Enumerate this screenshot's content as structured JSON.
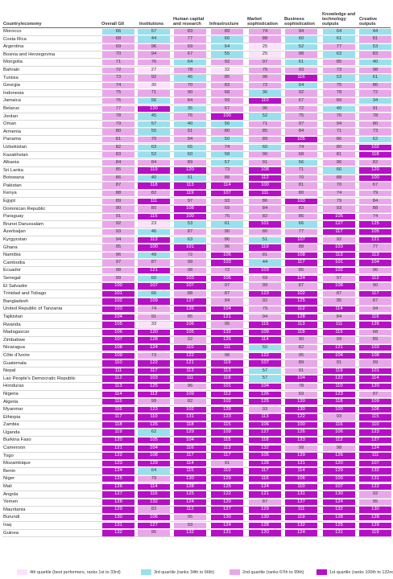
{
  "headers": {
    "country": "Country/economy",
    "cols": [
      "Overall GII",
      "Institutions",
      "Human capital and research",
      "Infrastructure",
      "Market sophistication",
      "Business sophistication",
      "Knowledge and technology outputs",
      "Creative outputs"
    ]
  },
  "colors": {
    "q1": "#fbe2fb",
    "q2": "#98e0ee",
    "q3": "#eaa6ea",
    "q4": "#b70fc8"
  },
  "rows": [
    {
      "c": "Morocco",
      "v": [
        66,
        57,
        83,
        89,
        74,
        94,
        64,
        44
      ]
    },
    {
      "c": "Costa Rica",
      "v": [
        68,
        44,
        77,
        66,
        88,
        60,
        61,
        81
      ]
    },
    {
      "c": "Argentina",
      "v": [
        69,
        96,
        69,
        64,
        25,
        52,
        77,
        53
      ]
    },
    {
      "c": "Bosnia and Herzegovina",
      "v": [
        70,
        94,
        67,
        55,
        25,
        98,
        63,
        83
      ]
    },
    {
      "c": "Mongolia",
      "v": [
        71,
        76,
        64,
        92,
        97,
        61,
        85,
        40
      ]
    },
    {
      "c": "Bahrain",
      "v": [
        72,
        27,
        78,
        32,
        75,
        93,
        73,
        98
      ]
    },
    {
      "c": "Tunisia",
      "v": [
        73,
        92,
        45,
        85,
        98,
        116,
        53,
        61
      ]
    },
    {
      "c": "Georgia",
      "v": [
        74,
        30,
        70,
        83,
        72,
        64,
        75,
        86
      ]
    },
    {
      "c": "Indonesia",
      "v": [
        75,
        71,
        90,
        68,
        36,
        92,
        78,
        72
      ]
    },
    {
      "c": "Jamaica",
      "v": [
        76,
        56,
        84,
        99,
        110,
        67,
        89,
        34
      ]
    },
    {
      "c": "Belarus",
      "v": [
        77,
        130,
        35,
        67,
        96,
        72,
        40,
        91
      ]
    },
    {
      "c": "Jordan",
      "v": [
        78,
        45,
        76,
        100,
        52,
        75,
        76,
        78
      ]
    },
    {
      "c": "Oman",
      "v": [
        79,
        57,
        40,
        56,
        71,
        97,
        94,
        80
      ]
    },
    {
      "c": "Armenia",
      "v": [
        80,
        55,
        91,
        80,
        85,
        84,
        71,
        73
      ]
    },
    {
      "c": "Panama",
      "v": [
        81,
        70,
        94,
        50,
        89,
        105,
        86,
        62
      ]
    },
    {
      "c": "Uzbekistan",
      "v": [
        82,
        63,
        65,
        74,
        60,
        74,
        80,
        102
      ]
    },
    {
      "c": "Kazakhstan",
      "v": [
        83,
        52,
        60,
        58,
        90,
        68,
        81,
        118
      ]
    },
    {
      "c": "Albania",
      "v": [
        84,
        84,
        89,
        57,
        91,
        56,
        96,
        82
      ]
    },
    {
      "c": "Sri Lanka",
      "v": [
        85,
        119,
        120,
        73,
        108,
        71,
        66,
        120
      ]
    },
    {
      "c": "Botswana",
      "v": [
        86,
        40,
        51,
        88,
        112,
        70,
        88,
        100
      ]
    },
    {
      "c": "Pakistan",
      "v": [
        87,
        118,
        113,
        114,
        100,
        81,
        70,
        67
      ]
    },
    {
      "c": "Kenya",
      "v": [
        88,
        82,
        119,
        107,
        111,
        80,
        74,
        79
      ]
    },
    {
      "c": "Egypt",
      "v": [
        89,
        111,
        97,
        93,
        86,
        103,
        79,
        84
      ]
    },
    {
      "c": "Dominican Republic",
      "v": [
        90,
        80,
        108,
        69,
        84,
        83,
        93,
        88
      ]
    },
    {
      "c": "Paraguay",
      "v": [
        91,
        115,
        100,
        76,
        82,
        86,
        105,
        74
      ]
    },
    {
      "c": "Brunei Darussalam",
      "v": [
        92,
        23,
        53,
        61,
        101,
        66,
        127,
        125
      ]
    },
    {
      "c": "Azerbaijan",
      "v": [
        93,
        46,
        87,
        90,
        80,
        77,
        117,
        105
      ]
    },
    {
      "c": "Kyrgyzstan",
      "v": [
        94,
        113,
        63,
        86,
        51,
        107,
        92,
        121
      ]
    },
    {
      "c": "Ghana",
      "v": [
        95,
        100,
        101,
        96,
        119,
        88,
        103,
        77
      ]
    },
    {
      "c": "Namibia",
      "v": [
        96,
        49,
        72,
        106,
        81,
        108,
        113,
        113
      ]
    },
    {
      "c": "Cambodia",
      "v": [
        97,
        87,
        99,
        103,
        44,
        117,
        101,
        104
      ]
    },
    {
      "c": "Ecuador",
      "v": [
        98,
        121,
        98,
        72,
        103,
        85,
        102,
        96
      ]
    },
    {
      "c": "Senegal",
      "v": [
        99,
        60,
        103,
        105,
        69,
        124,
        97,
        112
      ]
    },
    {
      "c": "El Salvador",
      "v": [
        100,
        107,
        107,
        97,
        99,
        87,
        108,
        90
      ]
    },
    {
      "c": "Trinidad and Tobago",
      "v": [
        101,
        66,
        88,
        87,
        123,
        102,
        87,
        117
      ]
    },
    {
      "c": "Bangladesh",
      "v": [
        102,
        109,
        127,
        94,
        92,
        125,
        95,
        87
      ]
    },
    {
      "c": "United Republic of Tanzania",
      "v": [
        103,
        74,
        126,
        104,
        79,
        112,
        114,
        94
      ]
    },
    {
      "c": "Tajikistan",
      "v": [
        104,
        91,
        85,
        121,
        94,
        128,
        84,
        116
      ]
    },
    {
      "c": "Rwanda",
      "v": [
        105,
        33,
        106,
        95,
        115,
        113,
        111,
        126
      ]
    },
    {
      "c": "Madagascar",
      "v": [
        106,
        120,
        105,
        132,
        109,
        118,
        115,
        68
      ]
    },
    {
      "c": "Zimbabwe",
      "v": [
        107,
        128,
        92,
        126,
        114,
        90,
        99,
        89
      ]
    },
    {
      "c": "Nicaragua",
      "v": [
        108,
        124,
        110,
        111,
        50,
        82,
        121,
        103
      ]
    },
    {
      "c": "Côte d'Ivoire",
      "v": [
        109,
        73,
        122,
        98,
        122,
        95,
        104,
        108
      ]
    },
    {
      "c": "Guatemala",
      "v": [
        110,
        122,
        121,
        119,
        107,
        89,
        91,
        99
      ]
    },
    {
      "c": "Nepal",
      "v": [
        111,
        117,
        113,
        113,
        57,
        91,
        119,
        101
      ]
    },
    {
      "c": "Lao People's Democratic Republic",
      "v": [
        112,
        103,
        111,
        118,
        57,
        104,
        122,
        114
      ]
    },
    {
      "c": "Honduras",
      "v": [
        113,
        125,
        96,
        101,
        104,
        78,
        110,
        120
      ]
    },
    {
      "c": "Nigeria",
      "v": [
        114,
        112,
        109,
        112,
        126,
        69,
        123,
        97
      ]
    },
    {
      "c": "Algeria",
      "v": [
        115,
        99,
        82,
        102,
        125,
        120,
        118,
        109
      ]
    },
    {
      "c": "Myanmar",
      "v": [
        116,
        123,
        102,
        128,
        93,
        130,
        100,
        106
      ]
    },
    {
      "c": "Ethiopia",
      "v": [
        117,
        110,
        131,
        123,
        113,
        122,
        93,
        115
      ]
    },
    {
      "c": "Zambia",
      "v": [
        118,
        126,
        118,
        115,
        106,
        100,
        116,
        110
      ]
    },
    {
      "c": "Uganda",
      "v": [
        119,
        62,
        129,
        109,
        127,
        126,
        106,
        123
      ]
    },
    {
      "c": "Burkina Faso",
      "v": [
        120,
        105,
        104,
        115,
        118,
        123,
        112,
        127
      ]
    },
    {
      "c": "Cameroon",
      "v": [
        121,
        104,
        116,
        113,
        132,
        99,
        98,
        124
      ]
    },
    {
      "c": "Togo",
      "v": [
        122,
        108,
        117,
        117,
        105,
        129,
        126,
        111
      ]
    },
    {
      "c": "Mozambique",
      "v": [
        123,
        129,
        114,
        91,
        128,
        121,
        120,
        107
      ]
    },
    {
      "c": "Benin",
      "v": [
        124,
        64,
        115,
        110,
        117,
        114,
        129,
        132
      ]
    },
    {
      "c": "Niger",
      "v": [
        125,
        79,
        130,
        129,
        116,
        106,
        109,
        131
      ]
    },
    {
      "c": "Mali",
      "v": [
        126,
        114,
        128,
        125,
        124,
        110,
        107,
        122
      ]
    },
    {
      "c": "Angola",
      "v": [
        127,
        116,
        125,
        122,
        121,
        131,
        130,
        92
      ]
    },
    {
      "c": "Yemen",
      "v": [
        128,
        132,
        124,
        120,
        87,
        127,
        124,
        95
      ]
    },
    {
      "c": "Mauritania",
      "v": [
        129,
        83,
        112,
        127,
        129,
        111,
        132,
        130
      ]
    },
    {
      "c": "Burundi",
      "v": [
        130,
        106,
        95,
        130,
        130,
        119,
        128,
        128
      ]
    },
    {
      "c": "Iraq",
      "v": [
        131,
        127,
        93,
        124,
        128,
        132,
        125,
        129
      ]
    },
    {
      "c": "Guinea",
      "v": [
        132,
        95,
        132,
        131,
        120,
        124,
        131,
        119
      ]
    }
  ],
  "legend": [
    {
      "label": "4th quartile (best performers, ranks 1st to 33rd)",
      "cls": "q1"
    },
    {
      "label": "3rd quartile (ranks 34th to 66th)",
      "cls": "q2"
    },
    {
      "label": "2nd quartile (ranks 67th to 99th)",
      "cls": "q3"
    },
    {
      "label": "1st quartile (ranks 100th to 132nd)",
      "cls": "q4"
    }
  ]
}
